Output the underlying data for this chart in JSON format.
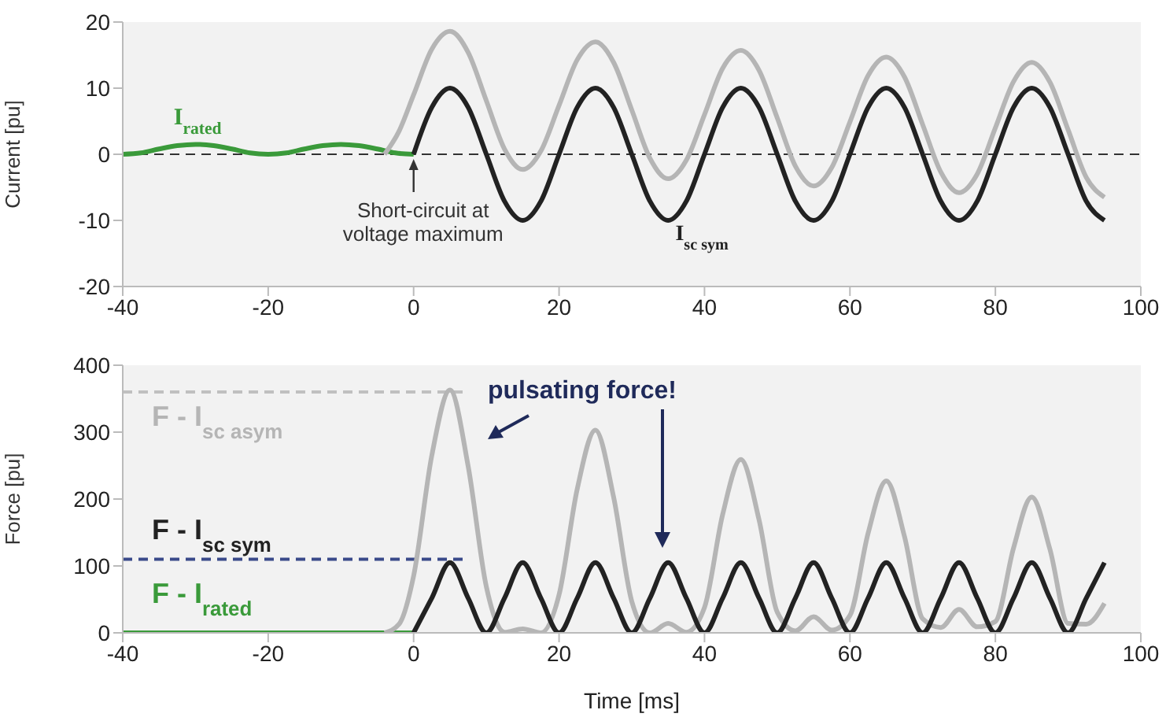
{
  "chart_data": [
    {
      "type": "line",
      "ylabel": "Current [pu]",
      "xlim": [
        -40,
        100
      ],
      "xticks": [
        -40,
        -20,
        0,
        20,
        40,
        60,
        80,
        100
      ],
      "ylim": [
        -20,
        20
      ],
      "yticks": [
        -20,
        -10,
        0,
        10,
        20
      ],
      "grid": false,
      "series": [
        {
          "name": "I$_{rated}$",
          "color": "#3a9a3a",
          "x": [
            -40,
            -37.5,
            -35,
            -32.5,
            -30,
            -27.5,
            -25,
            -22.5,
            -20,
            -17.5,
            -15,
            -12.5,
            -10,
            -7.5,
            -5,
            -2.5,
            0
          ],
          "values": [
            0,
            0.2,
            0.8,
            1.3,
            1.5,
            1.3,
            0.8,
            0.2,
            0,
            0.2,
            0.8,
            1.3,
            1.5,
            1.3,
            0.8,
            0.2,
            0
          ]
        },
        {
          "color": "#b5b5b5",
          "x": [
            -4,
            -2,
            0,
            2.5,
            5,
            7.5,
            10,
            12.5,
            15,
            17.5,
            20,
            22.5,
            25,
            27.5,
            30,
            32.5,
            35,
            37.5,
            40,
            42.5,
            45,
            47.5,
            50,
            52.5,
            55,
            57.5,
            60,
            62.5,
            65,
            67.5,
            70,
            72.5,
            75,
            77.5,
            80,
            82.5,
            85,
            87.5,
            90,
            92.5,
            95
          ],
          "values": [
            0,
            3.5,
            9,
            15.9,
            18.6,
            15.4,
            8.1,
            0.8,
            -2.3,
            0.5,
            7.4,
            14.3,
            17,
            13.9,
            6.7,
            -0.6,
            -3.7,
            -0.9,
            6,
            13,
            15.7,
            12.7,
            5.5,
            -1.8,
            -4.8,
            -2,
            4.9,
            11.9,
            14.7,
            11.7,
            4.5,
            -2.7,
            -5.8,
            -3,
            4,
            11,
            13.9,
            10.9,
            3.7,
            -3.5,
            -6.5
          ]
        },
        {
          "name": "I$_{sc sym}$",
          "color": "#222222",
          "x": [
            0,
            2.5,
            5,
            7.5,
            10,
            12.5,
            15,
            17.5,
            20,
            22.5,
            25,
            27.5,
            30,
            32.5,
            35,
            37.5,
            40,
            42.5,
            45,
            47.5,
            50,
            52.5,
            55,
            57.5,
            60,
            62.5,
            65,
            67.5,
            70,
            72.5,
            75,
            77.5,
            80,
            82.5,
            85,
            87.5,
            90,
            92.5,
            95
          ],
          "values": [
            0,
            7.1,
            10,
            7.1,
            0,
            -7.1,
            -10,
            -7.1,
            0,
            7.1,
            10,
            7.1,
            0,
            -7.1,
            -10,
            -7.1,
            0,
            7.1,
            10,
            7.1,
            0,
            -7.1,
            -10,
            -7.1,
            0,
            7.1,
            10,
            7.1,
            0,
            -7.1,
            -10,
            -7.1,
            0,
            7.1,
            10,
            7.1,
            0,
            -7.1,
            -10
          ]
        }
      ],
      "ref_lines": [
        {
          "axis": "y",
          "value": 0,
          "color": "#333333",
          "line_style": "dashed"
        }
      ],
      "annotations": [
        {
          "text": "Short-circuit at voltage maximum",
          "x": 0,
          "y": 0
        }
      ]
    },
    {
      "type": "line",
      "xlabel": "Time [ms]",
      "ylabel": "Force [pu]",
      "xlim": [
        -40,
        100
      ],
      "xticks": [
        -40,
        -20,
        0,
        20,
        40,
        60,
        80,
        100
      ],
      "ylim": [
        0,
        400
      ],
      "yticks": [
        0,
        100,
        200,
        300,
        400
      ],
      "grid": false,
      "legend": "top left",
      "series": [
        {
          "name": "F - I$_{rated}$",
          "color": "#3a9a3a",
          "x": [
            -40,
            -20,
            0
          ],
          "values": [
            0,
            0,
            0
          ]
        },
        {
          "name": "F - I$_{sc asym}$",
          "color": "#b5b5b5",
          "x": [
            -4,
            -2,
            0,
            2.5,
            5,
            7.5,
            10,
            12.5,
            15,
            17.5,
            20,
            22.5,
            25,
            27.5,
            30,
            32.5,
            35,
            37.5,
            40,
            42.5,
            45,
            47.5,
            50,
            52.5,
            55,
            57.5,
            60,
            62.5,
            65,
            67.5,
            70,
            72.5,
            75,
            77.5,
            80,
            82.5,
            85,
            87.5,
            90,
            92.5,
            95
          ],
          "values": [
            0,
            13,
            85,
            265,
            363,
            249,
            69,
            1,
            6,
            0,
            57,
            215,
            303,
            203,
            47,
            0,
            14,
            1,
            38,
            177,
            259,
            169,
            31,
            3,
            24,
            4,
            26,
            149,
            227,
            144,
            21,
            8,
            35,
            9,
            17,
            127,
            203,
            125,
            14,
            13,
            44
          ]
        },
        {
          "name": "F - I$_{sc sym}$",
          "color": "#222222",
          "x": [
            0,
            2.5,
            5,
            7.5,
            10,
            12.5,
            15,
            17.5,
            20,
            22.5,
            25,
            27.5,
            30,
            32.5,
            35,
            37.5,
            40,
            42.5,
            45,
            47.5,
            50,
            52.5,
            55,
            57.5,
            60,
            62.5,
            65,
            67.5,
            70,
            72.5,
            75,
            77.5,
            80,
            82.5,
            85,
            87.5,
            90,
            92.5,
            95
          ],
          "values": [
            0,
            52,
            105,
            52,
            0,
            52,
            105,
            52,
            0,
            52,
            105,
            52,
            0,
            52,
            105,
            52,
            0,
            52,
            105,
            52,
            0,
            52,
            105,
            52,
            0,
            52,
            105,
            52,
            0,
            52,
            105,
            52,
            0,
            52,
            105,
            52,
            0,
            52,
            105
          ]
        }
      ],
      "ref_lines": [
        {
          "axis": "y",
          "value": 360,
          "color": "#c0c0c0",
          "line_style": "dashed"
        },
        {
          "axis": "y",
          "value": 110,
          "color": "#3a4a8a",
          "line_style": "dashed"
        }
      ],
      "annotations": [
        "pulsating force!"
      ]
    }
  ]
}
